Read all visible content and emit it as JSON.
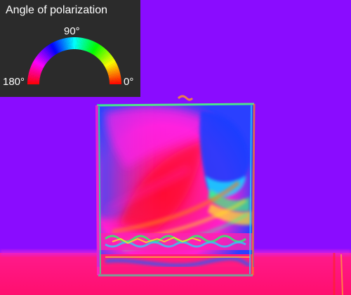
{
  "legend": {
    "title": "Angle of polarization",
    "label_90": "90°",
    "label_180": "180°",
    "label_0": "0°"
  },
  "colors": {
    "background": "#8a0cff",
    "panel": "#2b2b2b",
    "text": "#ffffff"
  }
}
